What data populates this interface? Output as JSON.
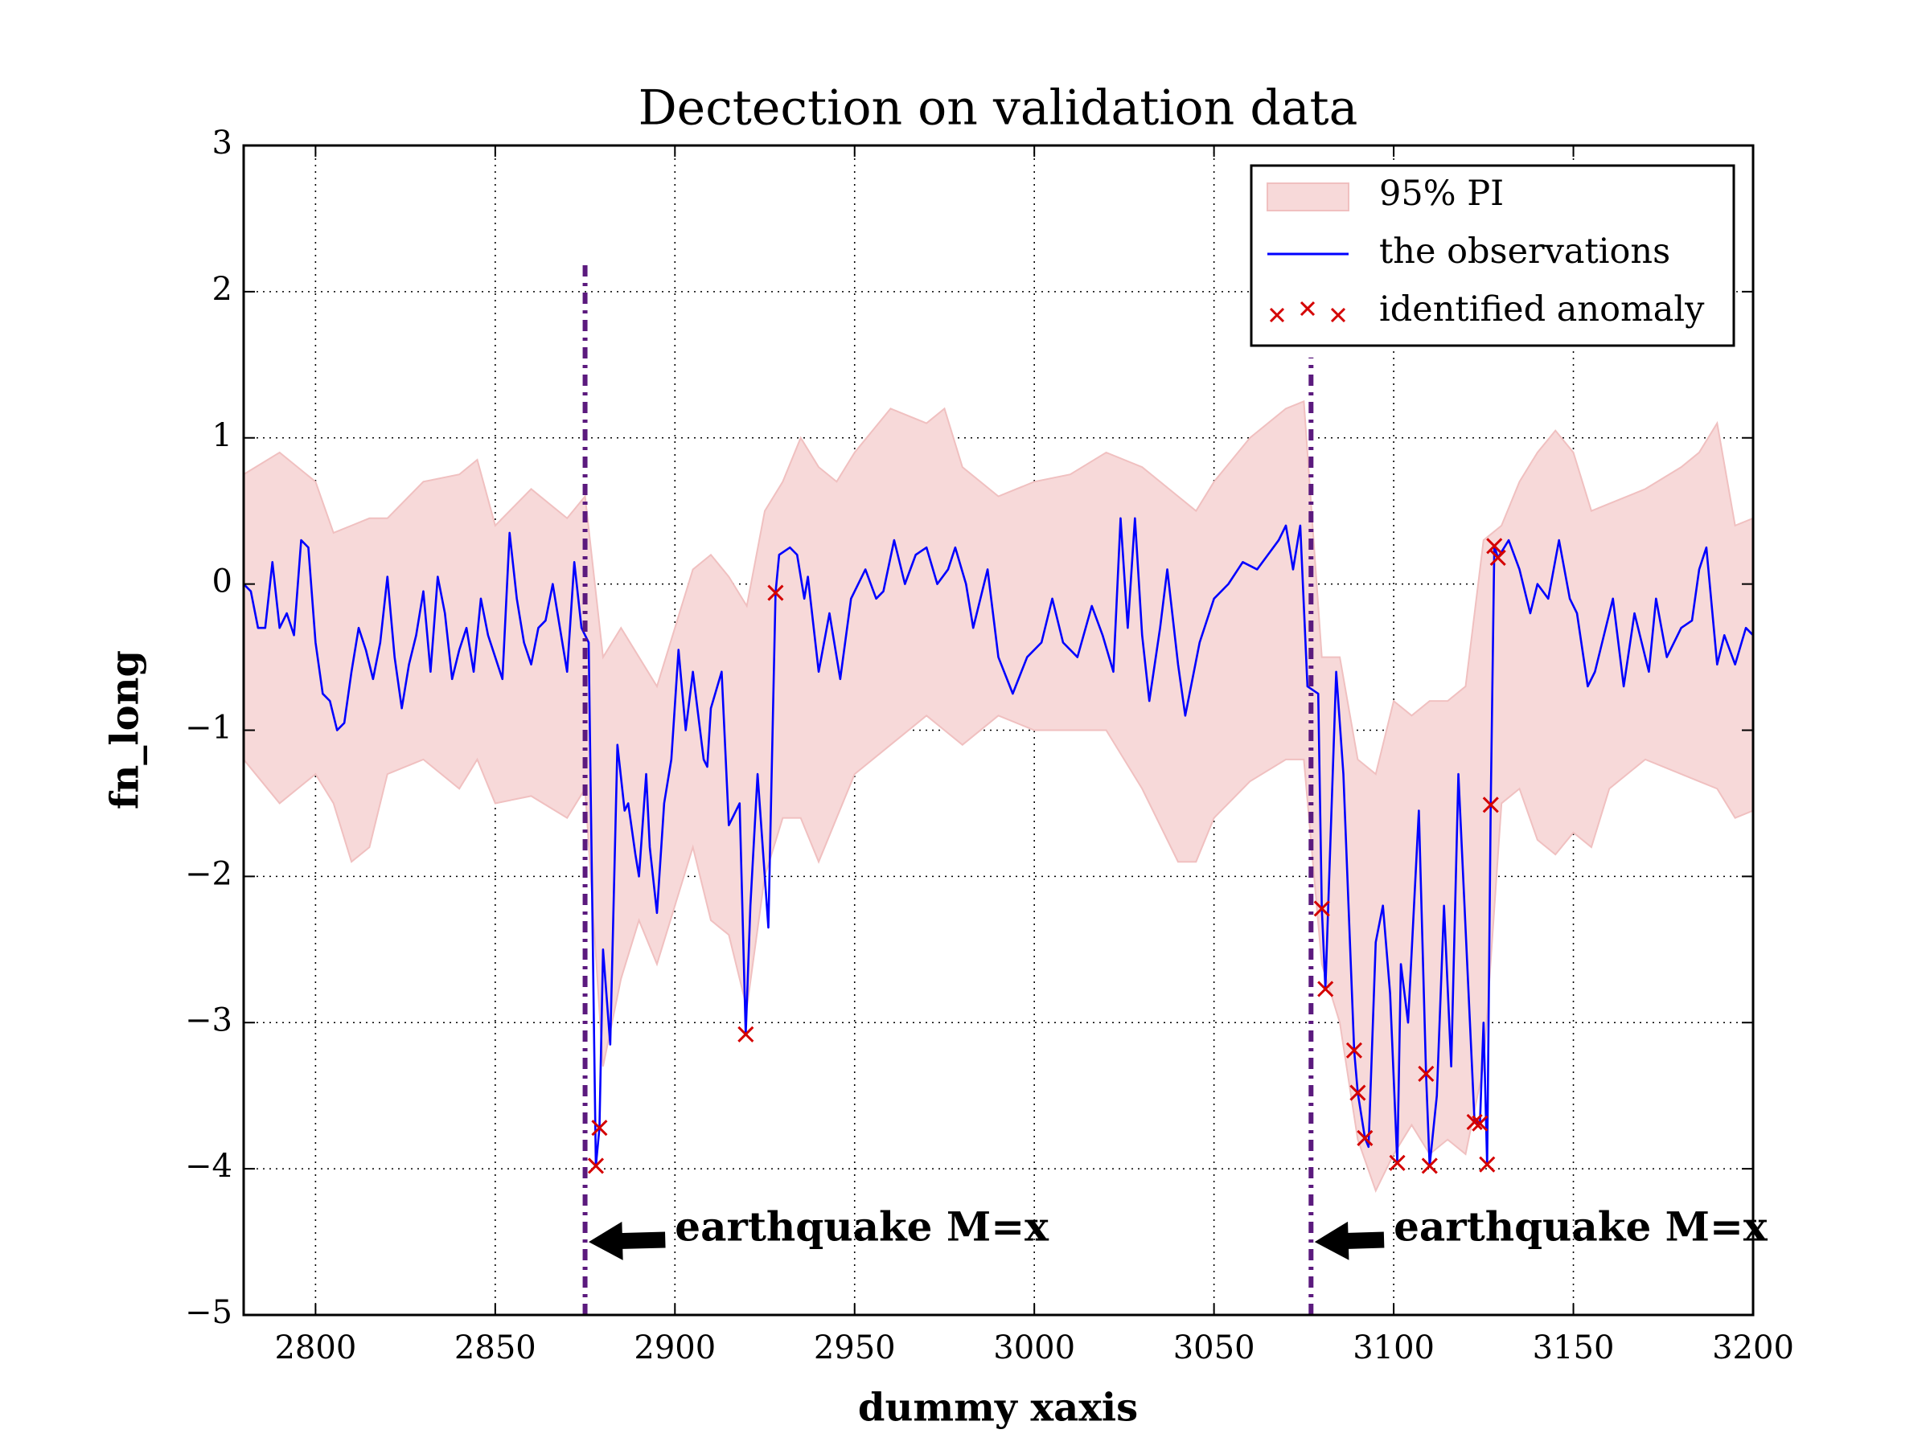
{
  "chart_data": {
    "type": "line",
    "title": "Dectection on validation data",
    "xlabel": "dummy xaxis",
    "ylabel": "fn_long",
    "xlim": [
      2780,
      3200
    ],
    "ylim": [
      -5,
      3
    ],
    "xticks": [
      2800,
      2850,
      2900,
      2950,
      3000,
      3050,
      3100,
      3150,
      3200
    ],
    "yticks": [
      {
        "value": -5,
        "label": "−5"
      },
      {
        "value": -4,
        "label": "−4"
      },
      {
        "value": -3,
        "label": "−3"
      },
      {
        "value": -2,
        "label": "−2"
      },
      {
        "value": -1,
        "label": "−1"
      },
      0,
      1,
      2,
      3
    ],
    "grid": true,
    "legend": "upper right",
    "series": [
      {
        "name": "95% PI",
        "kind": "band",
        "color": "#f7d9d9",
        "edge": "#f0c0c0",
        "x": [
          2780,
          2790,
          2800,
          2805,
          2810,
          2815,
          2820,
          2830,
          2840,
          2845,
          2850,
          2860,
          2870,
          2875,
          2880,
          2885,
          2890,
          2895,
          2900,
          2905,
          2910,
          2915,
          2920,
          2925,
          2930,
          2935,
          2940,
          2945,
          2950,
          2960,
          2970,
          2975,
          2980,
          2990,
          3000,
          3010,
          3020,
          3030,
          3040,
          3045,
          3050,
          3060,
          3070,
          3075,
          3080,
          3085,
          3090,
          3095,
          3100,
          3105,
          3110,
          3115,
          3120,
          3125,
          3130,
          3135,
          3140,
          3145,
          3150,
          3155,
          3160,
          3170,
          3180,
          3185,
          3190,
          3195,
          3200
        ],
        "upper": [
          0.75,
          0.9,
          0.7,
          0.35,
          0.4,
          0.45,
          0.45,
          0.7,
          0.75,
          0.85,
          0.4,
          0.65,
          0.45,
          0.6,
          -0.5,
          -0.3,
          -0.5,
          -0.7,
          -0.3,
          0.1,
          0.2,
          0.05,
          -0.15,
          0.5,
          0.7,
          1.0,
          0.8,
          0.7,
          0.9,
          1.2,
          1.1,
          1.2,
          0.8,
          0.6,
          0.7,
          0.75,
          0.9,
          0.8,
          0.6,
          0.5,
          0.7,
          1.0,
          1.2,
          1.25,
          -0.5,
          -0.5,
          -1.2,
          -1.3,
          -0.8,
          -0.9,
          -0.8,
          -0.8,
          -0.7,
          0.3,
          0.4,
          0.7,
          0.9,
          1.05,
          0.9,
          0.5,
          0.55,
          0.65,
          0.8,
          0.9,
          1.1,
          0.4,
          0.45
        ],
        "lower": [
          -1.2,
          -1.5,
          -1.3,
          -1.5,
          -1.9,
          -1.8,
          -1.3,
          -1.2,
          -1.4,
          -1.2,
          -1.5,
          -1.45,
          -1.6,
          -1.4,
          -3.3,
          -2.7,
          -2.3,
          -2.6,
          -2.2,
          -1.8,
          -2.3,
          -2.4,
          -2.9,
          -2.0,
          -1.6,
          -1.6,
          -1.9,
          -1.6,
          -1.3,
          -1.1,
          -0.9,
          -1.0,
          -1.1,
          -0.9,
          -1.0,
          -1.0,
          -1.0,
          -1.4,
          -1.9,
          -1.9,
          -1.6,
          -1.35,
          -1.2,
          -1.2,
          -2.6,
          -3.0,
          -3.8,
          -4.15,
          -3.9,
          -3.7,
          -3.9,
          -3.8,
          -3.9,
          -3.3,
          -1.5,
          -1.4,
          -1.75,
          -1.85,
          -1.7,
          -1.8,
          -1.4,
          -1.2,
          -1.3,
          -1.35,
          -1.4,
          -1.6,
          -1.55
        ]
      },
      {
        "name": "the observations",
        "kind": "line",
        "color": "#0000ff",
        "x": [
          2780,
          2782,
          2784,
          2786,
          2788,
          2790,
          2792,
          2794,
          2796,
          2798,
          2800,
          2802,
          2804,
          2806,
          2808,
          2810,
          2812,
          2814,
          2816,
          2818,
          2820,
          2822,
          2824,
          2826,
          2828,
          2830,
          2832,
          2834,
          2836,
          2838,
          2840,
          2842,
          2844,
          2846,
          2848,
          2850,
          2852,
          2854,
          2856,
          2858,
          2860,
          2862,
          2864,
          2866,
          2868,
          2870,
          2872,
          2874,
          2876,
          2878,
          2879,
          2880,
          2882,
          2884,
          2886,
          2887,
          2889,
          2890,
          2892,
          2893,
          2895,
          2897,
          2899,
          2901,
          2903,
          2905,
          2908,
          2909,
          2910,
          2913,
          2915,
          2918,
          2919.7,
          2921,
          2923,
          2926,
          2928,
          2929,
          2932,
          2934,
          2936,
          2937,
          2940,
          2943,
          2946,
          2949,
          2953,
          2956,
          2958,
          2961,
          2964,
          2967,
          2970,
          2973,
          2976,
          2978,
          2981,
          2983,
          2987,
          2990,
          2994,
          2998,
          3002,
          3005,
          3008,
          3012,
          3016,
          3019,
          3022,
          3024,
          3026,
          3028,
          3030,
          3032,
          3035,
          3037,
          3040,
          3042,
          3046,
          3050,
          3054,
          3058,
          3062,
          3065,
          3068,
          3070,
          3072,
          3074,
          3076,
          3079,
          3080,
          3081,
          3084,
          3086,
          3089,
          3090,
          3092,
          3093,
          3095,
          3097,
          3099,
          3101,
          3102,
          3104,
          3107,
          3109,
          3110,
          3112,
          3114,
          3116,
          3118,
          3122.5,
          3124,
          3125,
          3126,
          3127,
          3128,
          3129,
          3132,
          3135,
          3138,
          3140,
          3143,
          3146,
          3149,
          3151,
          3154,
          3156,
          3158,
          3161,
          3164,
          3167,
          3171,
          3173,
          3176,
          3180,
          3183,
          3185,
          3187,
          3190,
          3192,
          3195,
          3198,
          3200
        ],
        "values": [
          0.0,
          -0.05,
          -0.3,
          -0.3,
          0.15,
          -0.3,
          -0.2,
          -0.35,
          0.3,
          0.25,
          -0.4,
          -0.75,
          -0.8,
          -1.0,
          -0.95,
          -0.6,
          -0.3,
          -0.45,
          -0.65,
          -0.4,
          0.05,
          -0.5,
          -0.85,
          -0.55,
          -0.35,
          -0.05,
          -0.6,
          0.05,
          -0.2,
          -0.65,
          -0.45,
          -0.3,
          -0.6,
          -0.1,
          -0.35,
          -0.5,
          -0.65,
          0.35,
          -0.1,
          -0.4,
          -0.55,
          -0.3,
          -0.25,
          0.0,
          -0.3,
          -0.6,
          0.15,
          -0.3,
          -0.4,
          -3.98,
          -3.72,
          -2.5,
          -3.15,
          -1.1,
          -1.55,
          -1.5,
          -1.85,
          -2.0,
          -1.3,
          -1.8,
          -2.25,
          -1.5,
          -1.2,
          -0.45,
          -1.0,
          -0.6,
          -1.2,
          -1.25,
          -0.85,
          -0.6,
          -1.65,
          -1.5,
          -3.08,
          -2.2,
          -1.3,
          -2.35,
          -0.06,
          0.2,
          0.25,
          0.2,
          -0.1,
          0.05,
          -0.6,
          -0.2,
          -0.65,
          -0.1,
          0.1,
          -0.1,
          -0.05,
          0.3,
          0.0,
          0.2,
          0.25,
          0.0,
          0.1,
          0.25,
          0.0,
          -0.3,
          0.1,
          -0.5,
          -0.75,
          -0.5,
          -0.4,
          -0.1,
          -0.4,
          -0.5,
          -0.15,
          -0.35,
          -0.6,
          0.45,
          -0.3,
          0.45,
          -0.35,
          -0.8,
          -0.3,
          0.1,
          -0.55,
          -0.9,
          -0.4,
          -0.1,
          0.0,
          0.15,
          0.1,
          0.2,
          0.3,
          0.4,
          0.1,
          0.4,
          -0.7,
          -0.75,
          -2.22,
          -2.77,
          -0.6,
          -1.3,
          -3.19,
          -3.48,
          -3.79,
          -3.85,
          -2.45,
          -2.2,
          -2.8,
          -3.96,
          -2.6,
          -3.0,
          -1.55,
          -3.35,
          -3.98,
          -3.5,
          -2.2,
          -3.3,
          -1.3,
          -3.68,
          -3.69,
          -3.0,
          -3.97,
          -1.51,
          0.26,
          0.18,
          0.3,
          0.1,
          -0.2,
          0.0,
          -0.1,
          0.3,
          -0.1,
          -0.2,
          -0.7,
          -0.6,
          -0.4,
          -0.1,
          -0.7,
          -0.2,
          -0.6,
          -0.1,
          -0.5,
          -0.3,
          -0.25,
          0.1,
          0.25,
          -0.55,
          -0.35,
          -0.55,
          -0.3,
          -0.35
        ]
      },
      {
        "name": "identified anomaly",
        "kind": "marker",
        "marker": "x",
        "color": "#d40000",
        "x": [
          2878,
          2879,
          2919.7,
          2928,
          3080,
          3081,
          3089,
          3090,
          3092,
          3101,
          3109,
          3110,
          3122.5,
          3124,
          3126,
          3127,
          3128,
          3129
        ],
        "values": [
          -3.98,
          -3.72,
          -3.08,
          -0.06,
          -2.22,
          -2.77,
          -3.19,
          -3.48,
          -3.79,
          -3.96,
          -3.35,
          -3.98,
          -3.68,
          -3.69,
          -3.97,
          -1.51,
          0.26,
          0.18
        ]
      }
    ],
    "vlines": [
      {
        "x": 2875,
        "ymax": 2.2,
        "color": "#5b1a7e"
      },
      {
        "x": 3077,
        "ymax": 1.55,
        "color": "#5b1a7e"
      }
    ],
    "annotations": [
      {
        "text": "earthquake M=x",
        "xy": [
          2876,
          -4.5
        ],
        "xytext": [
          2900,
          -4.42
        ]
      },
      {
        "text": "earthquake M=x",
        "xy": [
          3078,
          -4.5
        ],
        "xytext": [
          3100,
          -4.42
        ]
      }
    ]
  }
}
